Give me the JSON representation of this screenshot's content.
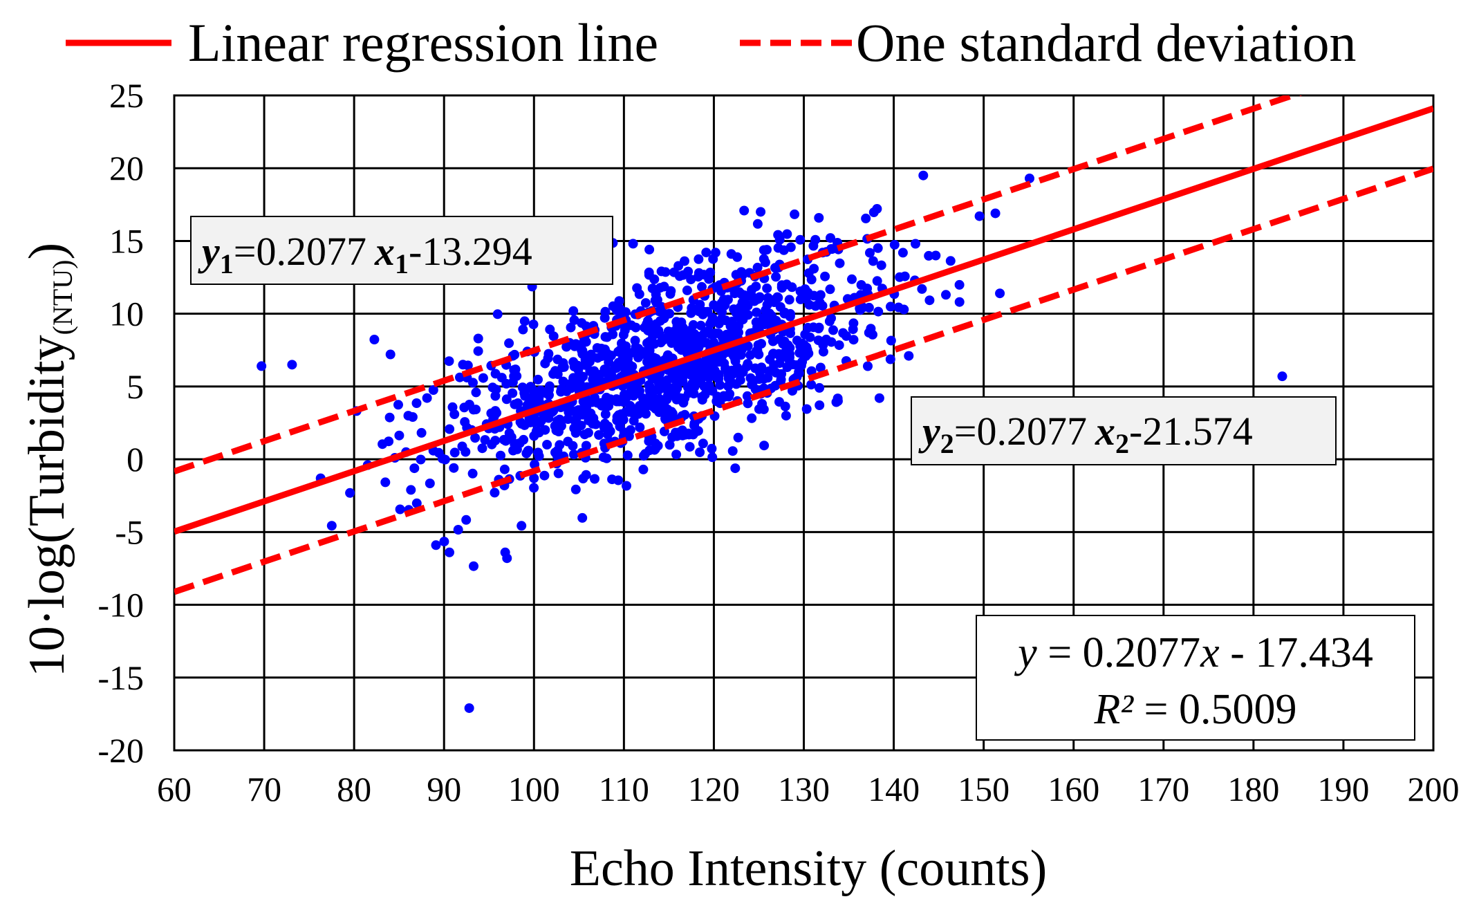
{
  "chart_data": {
    "type": "scatter",
    "title": "",
    "xlabel": "Echo Intensity (counts)",
    "ylabel_main": "10·log(Turbidity",
    "ylabel_sub": "(NTU)",
    "ylabel_close": ")",
    "xlim": [
      60,
      200
    ],
    "ylim": [
      -20,
      25
    ],
    "x_ticks": [
      "60",
      "70",
      "80",
      "90",
      "100",
      "110",
      "120",
      "130",
      "140",
      "150",
      "160",
      "170",
      "180",
      "190",
      "200"
    ],
    "y_ticks": [
      "25",
      "20",
      "15",
      "10",
      "5",
      "0",
      "-5",
      "-10",
      "-15",
      "-20"
    ],
    "grid": true,
    "legend": {
      "placement": "top",
      "items": [
        {
          "label": "Linear regression line",
          "style": "solid"
        },
        {
          "label": "One standard deviation",
          "style": "dashed"
        }
      ]
    },
    "regression": {
      "slope": 0.2077,
      "intercept": -17.434,
      "r2": 0.5009
    },
    "std_lines": [
      {
        "slope": 0.2077,
        "intercept": -13.294
      },
      {
        "slope": 0.2077,
        "intercept": -21.574
      }
    ],
    "annotations": {
      "upper": {
        "y_var": "y",
        "y_sub": "1",
        "eq": "=0.2077",
        "x_var": "x",
        "x_sub": "1",
        "tail": "-13.294"
      },
      "lower": {
        "y_var": "y",
        "y_sub": "2",
        "eq": "=0.2077",
        "x_var": "x",
        "x_sub": "2",
        "tail": "-21.574"
      },
      "fit_eq": {
        "y_var": "y",
        "mid": " = 0.2077",
        "x_var": "x",
        "tail": " - 17.434"
      },
      "r2": {
        "var": "R²",
        "tail": " = 0.5009"
      }
    },
    "colors": {
      "points": "#0000ff",
      "lines": "#ff0000",
      "grid": "#000000",
      "boxfill": "#f2f2f2"
    },
    "point_count": 1200,
    "scatter_sampling": {
      "x_mean": 115,
      "x_sd": 12,
      "x_min": 76,
      "x_max": 155,
      "residual_sd": 3.1
    },
    "outliers": [
      {
        "x": 69.7,
        "y": 6.4
      },
      {
        "x": 73.1,
        "y": 6.5
      },
      {
        "x": 92.8,
        "y": -17.1
      },
      {
        "x": 183.2,
        "y": 5.7
      },
      {
        "x": 89.1,
        "y": -5.9
      },
      {
        "x": 90.6,
        "y": -6.4
      },
      {
        "x": 96.8,
        "y": -6.4
      },
      {
        "x": 97.0,
        "y": -6.8
      },
      {
        "x": 125.2,
        "y": 17.0
      },
      {
        "x": 155.1,
        "y": 19.3
      },
      {
        "x": 151.3,
        "y": 16.9
      },
      {
        "x": 151.8,
        "y": 11.4
      },
      {
        "x": 133.8,
        "y": 4.0
      }
    ]
  }
}
